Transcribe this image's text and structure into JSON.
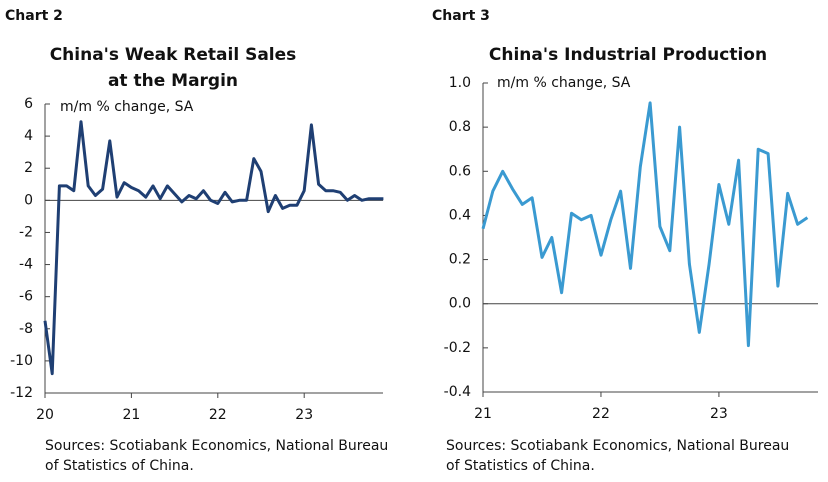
{
  "chart_data": [
    {
      "type": "line",
      "label": "Chart 2",
      "title": [
        "China's Weak Retail Sales",
        "at the Margin"
      ],
      "y_label": "m/m % change, SA",
      "categories": [
        "20",
        null,
        null,
        null,
        null,
        null,
        null,
        null,
        null,
        null,
        null,
        null,
        "21",
        null,
        null,
        null,
        null,
        null,
        null,
        null,
        null,
        null,
        null,
        null,
        "22",
        null,
        null,
        null,
        null,
        null,
        null,
        null,
        null,
        null,
        null,
        null,
        "23",
        null,
        null,
        null,
        null,
        null,
        null,
        null,
        null,
        null,
        null,
        null
      ],
      "color": "#1f3f73",
      "values": [
        -7.5,
        -10.8,
        0.9,
        0.9,
        0.6,
        4.9,
        0.9,
        0.3,
        0.7,
        3.7,
        0.2,
        1.1,
        0.8,
        0.6,
        0.2,
        0.9,
        0.1,
        0.9,
        0.4,
        -0.1,
        0.3,
        0.1,
        0.6,
        0.0,
        -0.2,
        0.5,
        -0.1,
        0.0,
        0.0,
        2.6,
        1.8,
        -0.7,
        0.3,
        -0.5,
        -0.3,
        -0.3,
        0.6,
        4.7,
        1.0,
        0.6,
        0.6,
        0.5,
        0.0,
        0.3,
        0.0,
        0.1,
        0.1,
        0.1
      ],
      "ylim": [
        -12,
        6
      ],
      "yticks": [
        -12,
        -10,
        -8,
        -6,
        -4,
        -2,
        0,
        2,
        4,
        6
      ],
      "source": [
        "Sources: Scotiabank Economics, National Bureau",
        "of Statistics of China."
      ]
    },
    {
      "type": "line",
      "label": "Chart 3",
      "title": [
        "China's Industrial Production"
      ],
      "y_label": "m/m % change, SA",
      "categories": [
        "21",
        null,
        null,
        null,
        null,
        null,
        null,
        null,
        null,
        null,
        null,
        null,
        "22",
        null,
        null,
        null,
        null,
        null,
        null,
        null,
        null,
        null,
        null,
        null,
        "23",
        null,
        null,
        null,
        null,
        null,
        null,
        null,
        null,
        null
      ],
      "color": "#3a9ad1",
      "values": [
        0.34,
        0.51,
        0.6,
        0.52,
        0.45,
        0.48,
        0.21,
        0.3,
        0.05,
        0.41,
        0.38,
        0.4,
        0.22,
        0.38,
        0.51,
        0.16,
        0.62,
        0.91,
        0.35,
        0.24,
        0.8,
        0.18,
        -0.13,
        0.18,
        0.54,
        0.36,
        0.65,
        -0.19,
        0.7,
        0.68,
        0.08,
        0.5,
        0.36,
        0.39
      ],
      "ylim": [
        -0.4,
        1.0
      ],
      "yticks": [
        {
          "value": -0.4,
          "label": "-0.4"
        },
        {
          "value": -0.2,
          "label": "-0.2"
        },
        {
          "value": 0,
          "label": "0.0"
        },
        {
          "value": 0.2,
          "label": "0.2"
        },
        {
          "value": 0.4,
          "label": "0.4"
        },
        {
          "value": 0.6,
          "label": "0.6"
        },
        {
          "value": 0.8,
          "label": "0.8"
        },
        {
          "value": 1.0,
          "label": "1.0"
        }
      ],
      "source": [
        "Sources: Scotiabank Economics, National Bureau",
        "of Statistics of China."
      ]
    }
  ]
}
